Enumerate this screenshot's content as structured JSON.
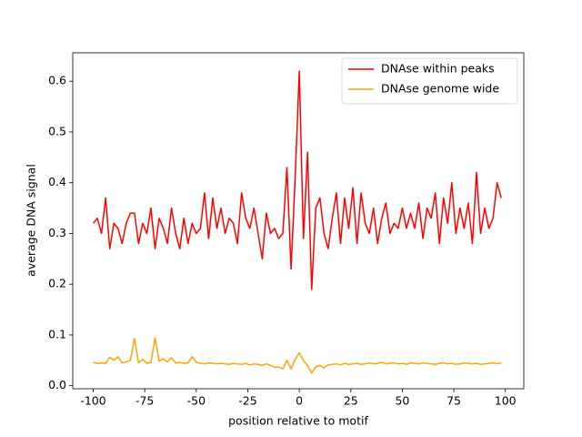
{
  "chart_data": {
    "type": "line",
    "xlabel": "position relative to motif",
    "ylabel": "average DNA signal",
    "x": [
      -100,
      -98,
      -96,
      -94,
      -92,
      -90,
      -88,
      -86,
      -84,
      -82,
      -80,
      -78,
      -76,
      -74,
      -72,
      -70,
      -68,
      -66,
      -64,
      -62,
      -60,
      -58,
      -56,
      -54,
      -52,
      -50,
      -48,
      -46,
      -44,
      -42,
      -40,
      -38,
      -36,
      -34,
      -32,
      -30,
      -28,
      -26,
      -24,
      -22,
      -20,
      -18,
      -16,
      -14,
      -12,
      -10,
      -8,
      -6,
      -4,
      -2,
      0,
      2,
      4,
      6,
      8,
      10,
      12,
      14,
      16,
      18,
      20,
      22,
      24,
      26,
      28,
      30,
      32,
      34,
      36,
      38,
      40,
      42,
      44,
      46,
      48,
      50,
      52,
      54,
      56,
      58,
      60,
      62,
      64,
      66,
      68,
      70,
      72,
      74,
      76,
      78,
      80,
      82,
      84,
      86,
      88,
      90,
      92,
      94,
      96,
      98
    ],
    "series": [
      {
        "name": "DNAse within peaks",
        "color": "#ff0000",
        "values": [
          0.32,
          0.33,
          0.3,
          0.37,
          0.27,
          0.32,
          0.31,
          0.28,
          0.32,
          0.34,
          0.34,
          0.28,
          0.32,
          0.3,
          0.35,
          0.27,
          0.33,
          0.31,
          0.28,
          0.35,
          0.3,
          0.27,
          0.33,
          0.28,
          0.32,
          0.3,
          0.31,
          0.38,
          0.29,
          0.37,
          0.31,
          0.35,
          0.3,
          0.33,
          0.32,
          0.28,
          0.38,
          0.33,
          0.31,
          0.35,
          0.3,
          0.25,
          0.34,
          0.3,
          0.31,
          0.29,
          0.3,
          0.43,
          0.23,
          0.41,
          0.62,
          0.29,
          0.46,
          0.19,
          0.35,
          0.37,
          0.3,
          0.27,
          0.33,
          0.38,
          0.28,
          0.37,
          0.31,
          0.39,
          0.28,
          0.38,
          0.32,
          0.3,
          0.35,
          0.28,
          0.33,
          0.36,
          0.3,
          0.32,
          0.31,
          0.35,
          0.31,
          0.34,
          0.31,
          0.36,
          0.29,
          0.35,
          0.33,
          0.38,
          0.28,
          0.37,
          0.32,
          0.4,
          0.3,
          0.35,
          0.31,
          0.36,
          0.28,
          0.42,
          0.3,
          0.35,
          0.31,
          0.33,
          0.4,
          0.37
        ]
      },
      {
        "name": "DNAse genome wide",
        "color": "#ffa500",
        "values": [
          0.046,
          0.044,
          0.045,
          0.044,
          0.056,
          0.05,
          0.057,
          0.045,
          0.047,
          0.05,
          0.093,
          0.045,
          0.052,
          0.044,
          0.046,
          0.094,
          0.048,
          0.053,
          0.047,
          0.055,
          0.045,
          0.046,
          0.044,
          0.045,
          0.057,
          0.046,
          0.044,
          0.043,
          0.045,
          0.044,
          0.043,
          0.044,
          0.043,
          0.042,
          0.044,
          0.043,
          0.042,
          0.044,
          0.041,
          0.043,
          0.042,
          0.04,
          0.043,
          0.04,
          0.036,
          0.037,
          0.033,
          0.05,
          0.033,
          0.052,
          0.065,
          0.05,
          0.04,
          0.025,
          0.037,
          0.04,
          0.035,
          0.041,
          0.042,
          0.043,
          0.041,
          0.044,
          0.042,
          0.043,
          0.044,
          0.042,
          0.043,
          0.045,
          0.043,
          0.044,
          0.046,
          0.043,
          0.044,
          0.045,
          0.043,
          0.044,
          0.042,
          0.045,
          0.044,
          0.043,
          0.045,
          0.044,
          0.043,
          0.042,
          0.044,
          0.045,
          0.043,
          0.044,
          0.042,
          0.043,
          0.045,
          0.044,
          0.043,
          0.044,
          0.042,
          0.043,
          0.044,
          0.045,
          0.043,
          0.045
        ]
      }
    ],
    "xlim": [
      -109.95,
      108.95
    ],
    "ylim": [
      -0.006,
      0.656
    ],
    "xticks": [
      -100,
      -75,
      -50,
      -25,
      0,
      25,
      50,
      75,
      100
    ],
    "yticks": [
      {
        "value": 0,
        "label": "0.0"
      },
      0.1,
      0.2,
      0.3,
      0.4,
      0.5,
      0.6
    ],
    "legend": "upper right"
  }
}
